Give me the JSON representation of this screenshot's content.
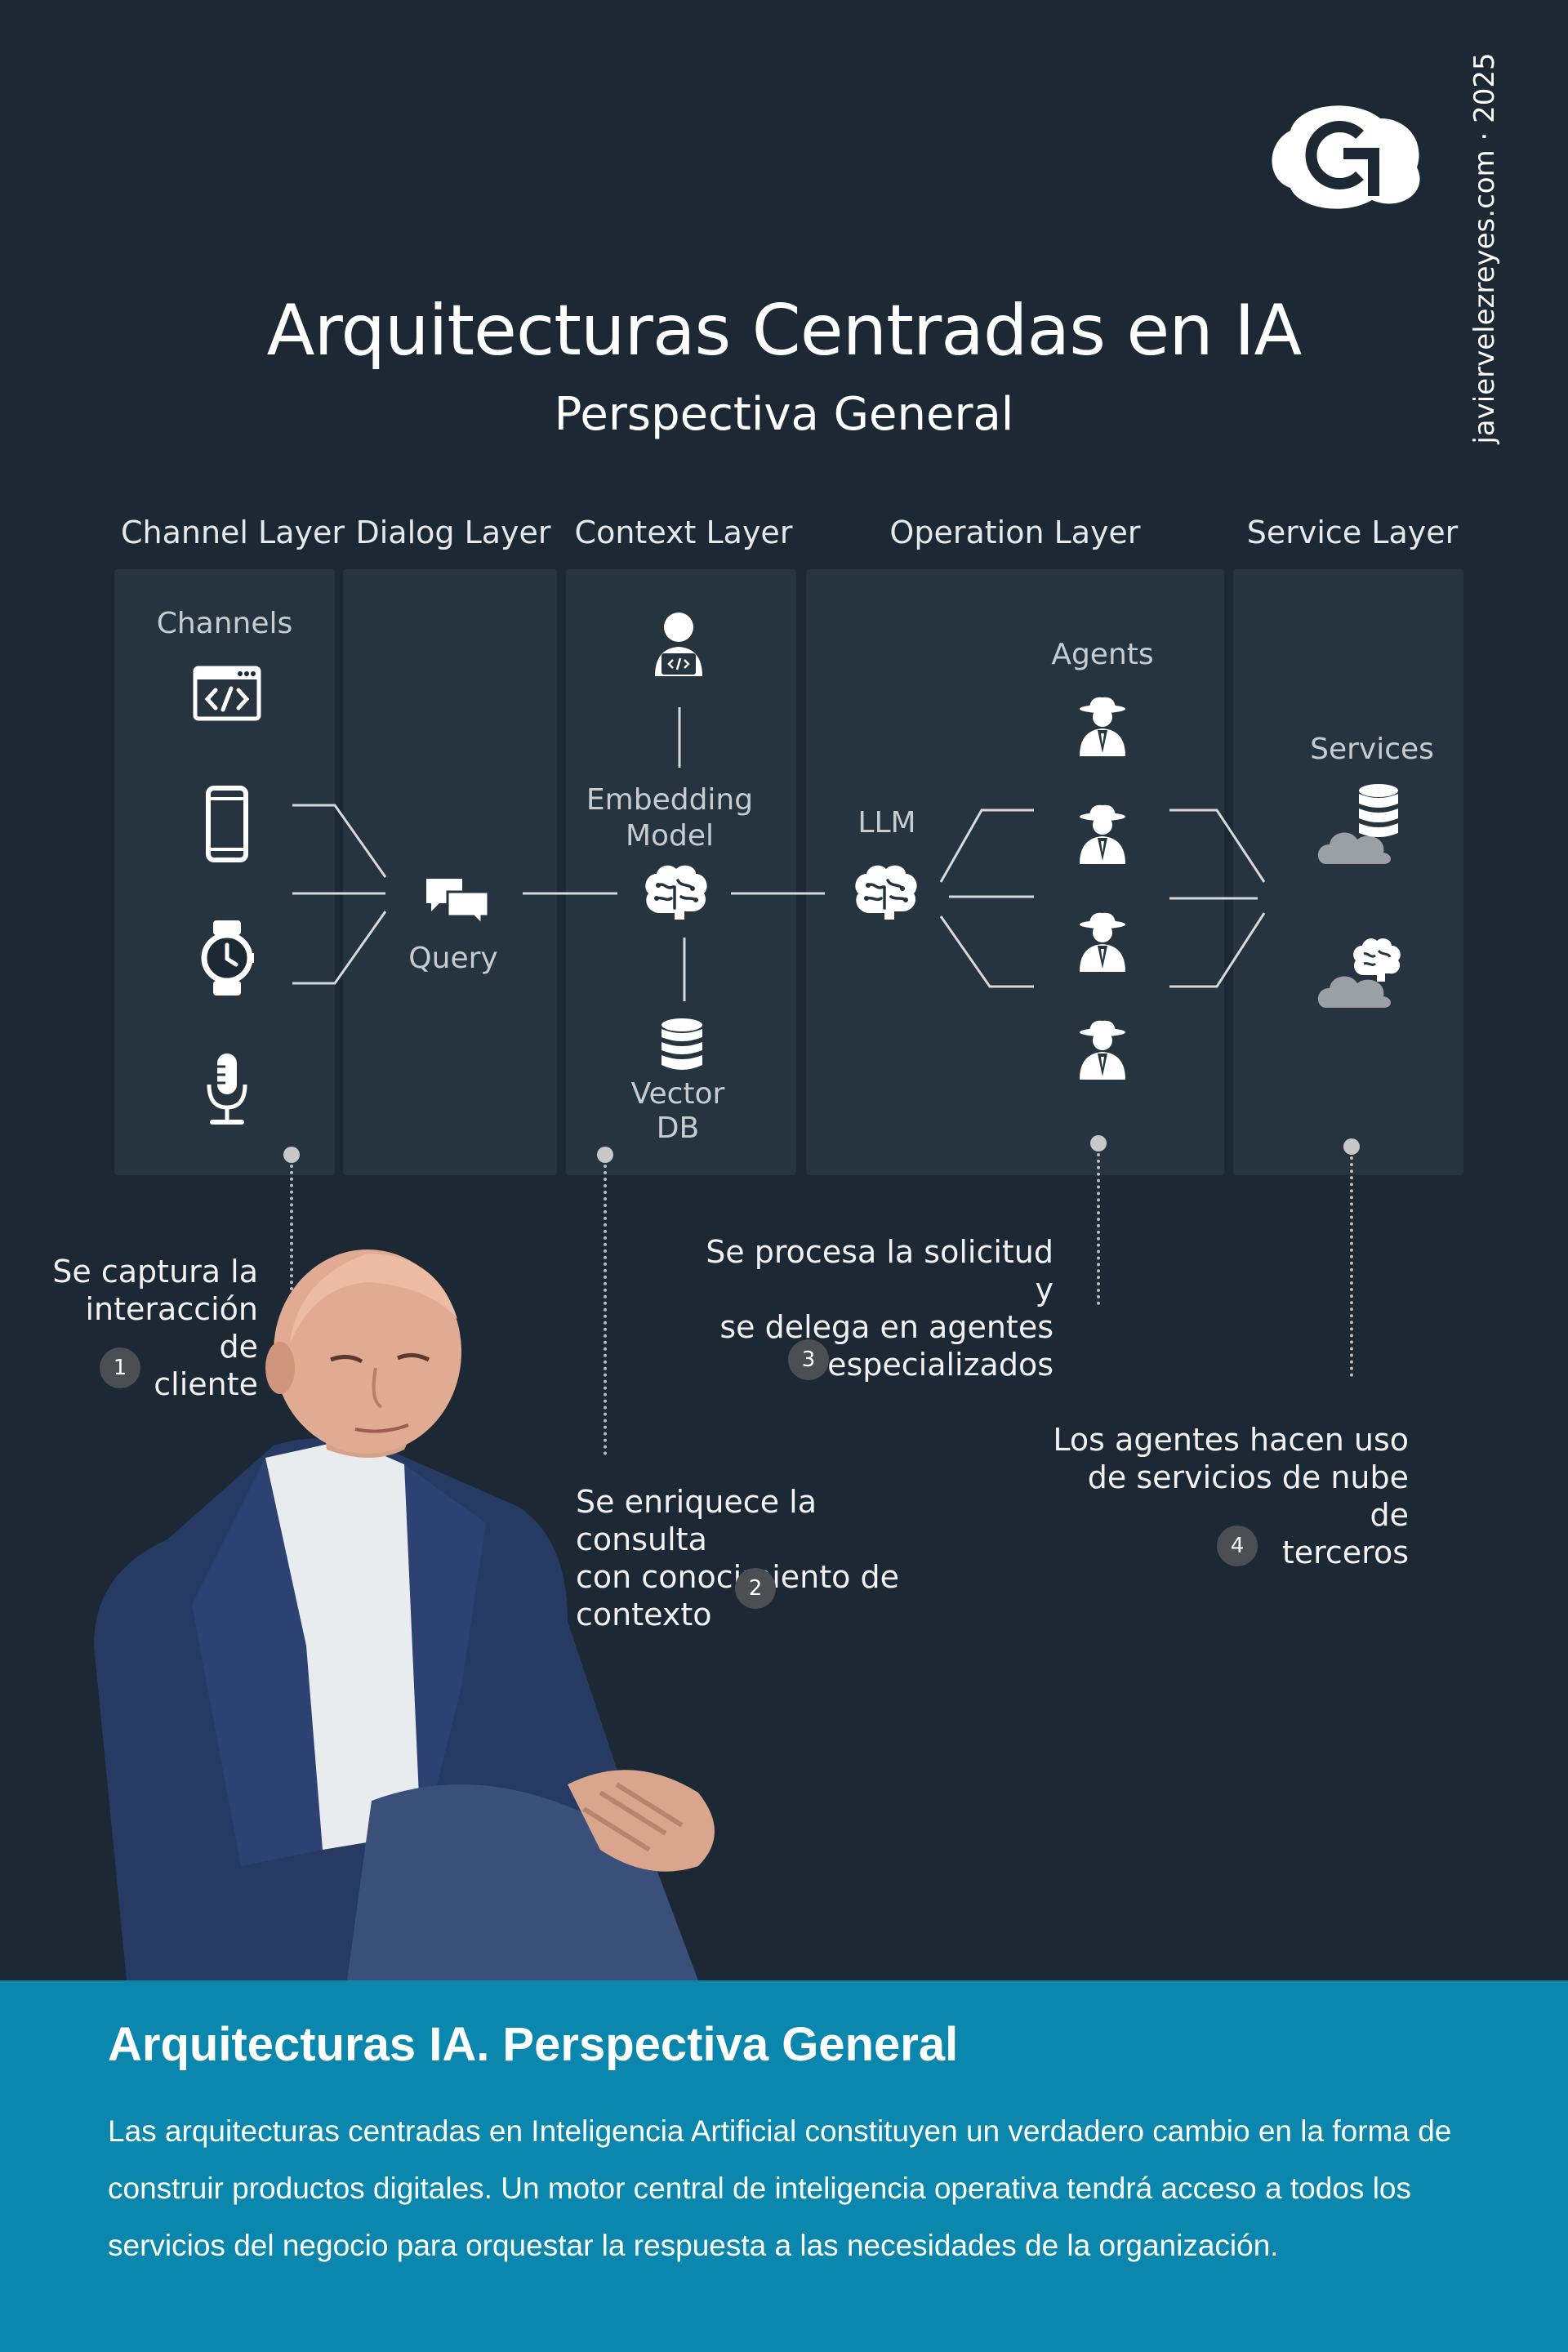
{
  "header": {
    "title": "Arquitecturas Centradas en IA",
    "subtitle": "Perspectiva General",
    "site": "javiervelezreyes.com · 2025"
  },
  "layers": [
    {
      "title": "Channel Layer"
    },
    {
      "title": "Dialog Layer"
    },
    {
      "title": "Context Layer"
    },
    {
      "title": "Operation Layer"
    },
    {
      "title": "Service Layer"
    }
  ],
  "diagram": {
    "channels_label": "Channels",
    "query_label": "Query",
    "embedding_label_1": "Embedding",
    "embedding_label_2": "Model",
    "vector_label_1": "Vector",
    "vector_label_2": "DB",
    "llm_label": "LLM",
    "agents_label": "Agents",
    "services_label": "Services"
  },
  "callouts": [
    {
      "number": "1",
      "line1": "Se captura la",
      "line2": "interacción de",
      "line3": "cliente"
    },
    {
      "number": "2",
      "line1": "Se enriquece la consulta",
      "line2": "con conocimiento de",
      "line3": "contexto"
    },
    {
      "number": "3",
      "line1": "Se procesa la solicitud y",
      "line2": "se delega en agentes",
      "line3": "especializados"
    },
    {
      "number": "4",
      "line1": "Los agentes hacen uso",
      "line2": "de servicios de nube de",
      "line3": "terceros"
    }
  ],
  "icons": [
    "logo-icon",
    "code-window-icon",
    "phone-icon",
    "watch-icon",
    "microphone-icon",
    "chat-icon",
    "developer-icon",
    "brain-icon",
    "database-icon",
    "agent-icon",
    "cloud-database-icon",
    "cloud-brain-icon"
  ],
  "colors": {
    "background": "#1c2833",
    "panel": "#263440",
    "footer": "#0b87ad",
    "line": "#d7d9db"
  },
  "footer": {
    "title": "Arquitecturas IA. Perspectiva General",
    "text": "Las arquitecturas centradas en Inteligencia Artificial constituyen un verdadero cambio en la forma de construir productos digitales. Un motor central de inteligencia operativa tendrá acceso a todos los servicios del negocio para orquestar la respuesta a las necesidades de la organización."
  }
}
